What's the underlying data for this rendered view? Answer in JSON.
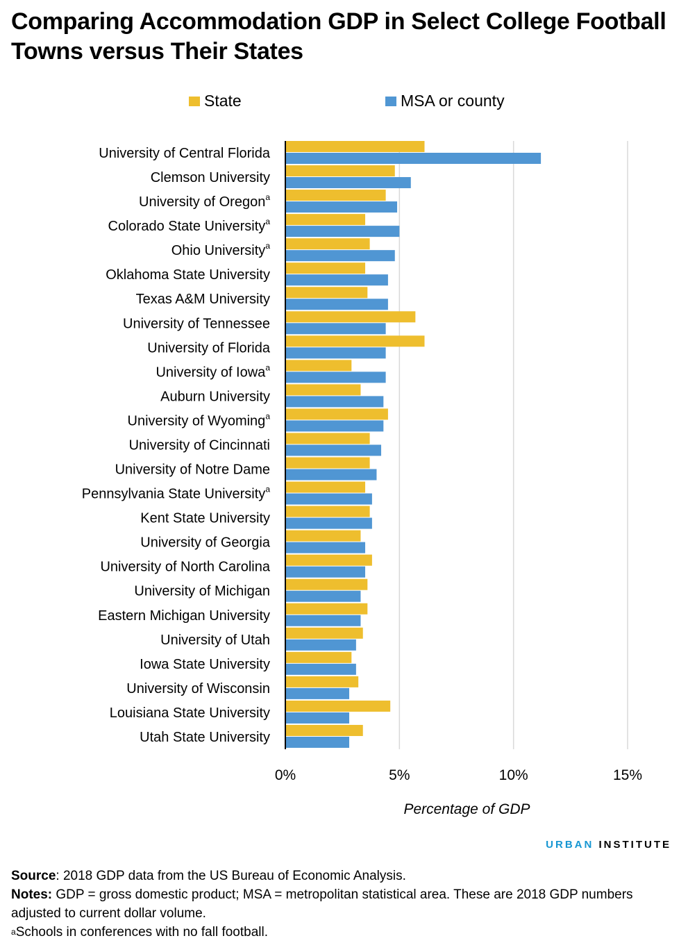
{
  "title": "Comparing Accommodation GDP in Select College Football Towns versus Their States",
  "legend": {
    "state_label": "State",
    "msa_label": "MSA or county"
  },
  "colors": {
    "state": "#EEBE2E",
    "msa": "#5096D3",
    "grid": "#D9D9D9",
    "axis": "#000000"
  },
  "chart_data": {
    "type": "bar",
    "orientation": "horizontal",
    "categories": [
      {
        "name": "University of Central Florida",
        "sup": ""
      },
      {
        "name": "Clemson University",
        "sup": ""
      },
      {
        "name": "University of Oregon",
        "sup": "a"
      },
      {
        "name": "Colorado State University",
        "sup": "a"
      },
      {
        "name": "Ohio University",
        "sup": "a"
      },
      {
        "name": "Oklahoma State University",
        "sup": ""
      },
      {
        "name": "Texas A&M University",
        "sup": ""
      },
      {
        "name": "University of Tennessee",
        "sup": ""
      },
      {
        "name": "University of Florida",
        "sup": ""
      },
      {
        "name": "University of Iowa",
        "sup": "a"
      },
      {
        "name": "Auburn University",
        "sup": ""
      },
      {
        "name": "University of Wyoming",
        "sup": "a"
      },
      {
        "name": "University of Cincinnati",
        "sup": ""
      },
      {
        "name": "University of Notre Dame",
        "sup": ""
      },
      {
        "name": "Pennsylvania State University",
        "sup": "a"
      },
      {
        "name": "Kent State University",
        "sup": ""
      },
      {
        "name": "University of Georgia",
        "sup": ""
      },
      {
        "name": "University of North Carolina",
        "sup": ""
      },
      {
        "name": "University of Michigan",
        "sup": ""
      },
      {
        "name": "Eastern Michigan University",
        "sup": ""
      },
      {
        "name": "University of Utah",
        "sup": ""
      },
      {
        "name": "Iowa State University",
        "sup": ""
      },
      {
        "name": "University of Wisconsin",
        "sup": ""
      },
      {
        "name": "Louisiana State University",
        "sup": ""
      },
      {
        "name": "Utah State University",
        "sup": ""
      }
    ],
    "series": [
      {
        "name": "State",
        "values": [
          6.1,
          4.8,
          4.4,
          3.5,
          3.7,
          3.5,
          3.6,
          5.7,
          6.1,
          2.9,
          3.3,
          4.5,
          3.7,
          3.7,
          3.5,
          3.7,
          3.3,
          3.8,
          3.6,
          3.6,
          3.4,
          2.9,
          3.2,
          4.6,
          3.4
        ]
      },
      {
        "name": "MSA or county",
        "values": [
          11.2,
          5.5,
          4.9,
          5.0,
          4.8,
          4.5,
          4.5,
          4.4,
          4.4,
          4.4,
          4.3,
          4.3,
          4.2,
          4.0,
          3.8,
          3.8,
          3.5,
          3.5,
          3.3,
          3.3,
          3.1,
          3.1,
          2.8,
          2.8,
          2.8
        ]
      }
    ],
    "xlabel": "Percentage of GDP",
    "xlim": [
      0,
      15
    ],
    "xticks": [
      0,
      5,
      10,
      15
    ],
    "xtick_labels": [
      "0%",
      "5%",
      "10%",
      "15%"
    ],
    "grid": "vertical"
  },
  "brand": {
    "urban": "URBAN",
    "institute": "INSTITUTE"
  },
  "notes": {
    "source_label": "Source",
    "source_text": ": 2018 GDP data from the US Bureau of Economic Analysis.",
    "notes_label": "Notes:",
    "notes_text": " GDP = gross domestic product; MSA = metropolitan statistical area. These are 2018 GDP numbers adjusted to current dollar volume.",
    "footnote_mark": "a",
    "footnote_text": "Schools in conferences with no fall football."
  }
}
